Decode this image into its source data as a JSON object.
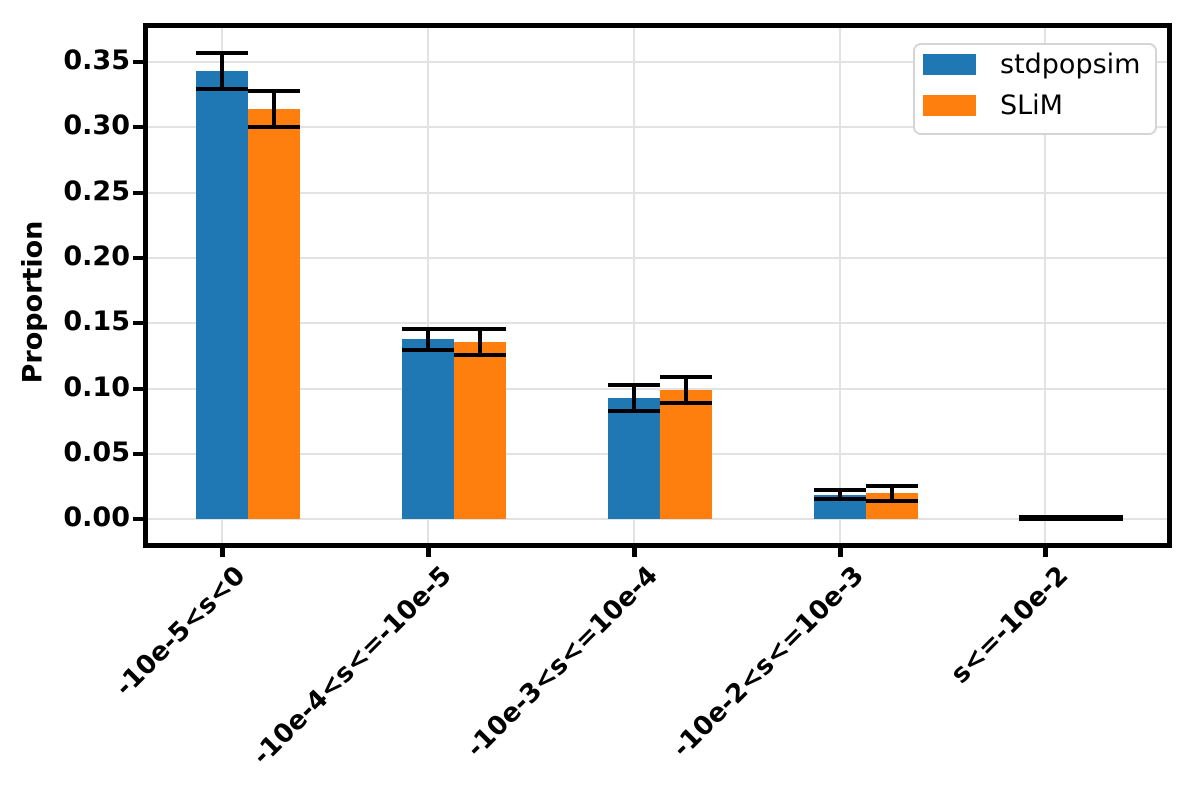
{
  "figure": {
    "background": "#ffffff"
  },
  "legend": {
    "items": [
      {
        "label": "stdpopsim",
        "color": "#1f77b4"
      },
      {
        "label": "SLiM",
        "color": "#ff7f0e"
      }
    ]
  },
  "chart_data": {
    "type": "bar",
    "title": "",
    "xlabel": "",
    "ylabel": "Proportion",
    "categories": [
      "-10e-5<s<0",
      "-10e-4<s<=-10e-5",
      "-10e-3<s<=10e-4",
      "-10e-2<s<=10e-3",
      "s<=-10e-2"
    ],
    "series": [
      {
        "name": "stdpopsim",
        "color": "#1f77b4",
        "values": [
          0.343,
          0.138,
          0.093,
          0.019,
          0.001
        ],
        "errors": [
          0.014,
          0.008,
          0.01,
          0.0035,
          0.0008
        ]
      },
      {
        "name": "SLiM",
        "color": "#ff7f0e",
        "values": [
          0.314,
          0.136,
          0.099,
          0.02,
          0.001
        ],
        "errors": [
          0.014,
          0.01,
          0.01,
          0.0055,
          0.0008
        ]
      }
    ],
    "error_bar_color": "#000000",
    "ylim": [
      -0.018,
      0.376
    ],
    "yticks": [
      {
        "value": 0.0,
        "label": "0.00"
      },
      {
        "value": 0.05,
        "label": "0.05"
      },
      {
        "value": 0.1,
        "label": "0.10"
      },
      {
        "value": 0.15,
        "label": "0.15"
      },
      {
        "value": 0.2,
        "label": "0.20"
      },
      {
        "value": 0.25,
        "label": "0.25"
      },
      {
        "value": 0.3,
        "label": "0.30"
      },
      {
        "value": 0.35,
        "label": "0.35"
      }
    ],
    "grid": true,
    "legend_position": "upper right"
  }
}
